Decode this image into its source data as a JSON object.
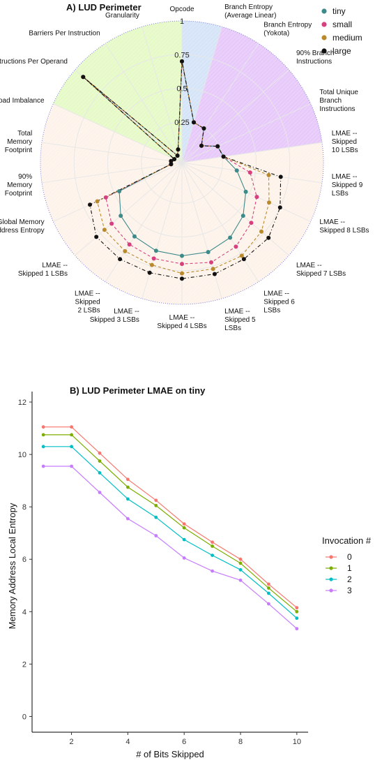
{
  "chart_data": [
    {
      "type": "radar",
      "title": "A) LUD Perimeter",
      "r_ticks": [
        "0.25",
        "0.5",
        "0.75",
        "1"
      ],
      "r_range": [
        0,
        1
      ],
      "axes": [
        "Opcode",
        "Branch Entropy\n(Average Linear)",
        "Branch Entropy\n(Yokota)",
        "90% Branch\nInstructions",
        "Total Unique\nBranch\nInstructions",
        "LMAE --\nSkipped\n10 LSBs",
        "LMAE --\nSkipped 9\nLSBs",
        "LMAE --\nSkipped 8 LSBs",
        "LMAE --\nSkipped 7 LSBs",
        "LMAE --\nSkipped 6\nLSBs",
        "LMAE --\nSkipped 5\nLSBs",
        "LMAE --\nSkipped 4 LSBs",
        "LMAE --\nSkipped 3 LSBs",
        "LMAE --\nSkipped\n2 LSBs",
        "LMAE --\nSkipped 1 LSBs",
        "Global Memory\nAddress Entropy",
        "90%\nMemory\nFootprint",
        "Total\nMemory\nFootprint",
        "Load Imbalance",
        "Instructions Per Operand",
        "Barriers Per Instruction",
        "Granularity"
      ],
      "sectors": [
        {
          "from_axis": 0,
          "to_axis": 1,
          "color": "#d6e4f8"
        },
        {
          "from_axis": 1,
          "to_axis": 5,
          "color": "#e7c9fa"
        },
        {
          "from_axis": 5,
          "to_axis": 18,
          "color": "#fdf3ea"
        },
        {
          "from_axis": 18,
          "to_axis": 22,
          "color": "#e6fac8"
        }
      ],
      "series": [
        {
          "name": "tiny",
          "color": "#3d8a8a",
          "dash": "solid",
          "values": [
            0.7,
            0.26,
            0.25,
            0.14,
            0.24,
            0.26,
            0.36,
            0.47,
            0.55,
            0.61,
            0.64,
            0.64,
            0.63,
            0.6,
            0.55,
            0.46,
            0.03,
            0.03,
            0.01,
            0.92,
            0.01,
            0.05
          ]
        },
        {
          "name": "small",
          "color": "#d6407f",
          "dash": "dashed",
          "values": [
            0.7,
            0.26,
            0.25,
            0.14,
            0.24,
            0.26,
            0.46,
            0.56,
            0.63,
            0.69,
            0.72,
            0.7,
            0.69,
            0.67,
            0.64,
            0.57,
            0.03,
            0.03,
            0.01,
            0.92,
            0.01,
            0.05
          ]
        },
        {
          "name": "medium",
          "color": "#b88a2c",
          "dash": "dashed",
          "values": [
            0.7,
            0.26,
            0.25,
            0.14,
            0.24,
            0.26,
            0.6,
            0.66,
            0.73,
            0.77,
            0.77,
            0.77,
            0.74,
            0.73,
            0.71,
            0.64,
            0.03,
            0.03,
            0.01,
            0.92,
            0.01,
            0.05
          ]
        },
        {
          "name": "large",
          "color": "#111111",
          "dash": "dotdash",
          "values": [
            0.7,
            0.26,
            0.25,
            0.14,
            0.24,
            0.26,
            0.69,
            0.75,
            0.8,
            0.8,
            0.81,
            0.81,
            0.8,
            0.8,
            0.79,
            0.7,
            0.03,
            0.03,
            0.01,
            0.92,
            0.01,
            0.05
          ]
        }
      ],
      "legend_position": "top-right",
      "grid": true
    },
    {
      "type": "line",
      "title": "B) LUD Perimeter LMAE on tiny",
      "xlabel": "# of Bits Skipped",
      "ylabel": "Memory Address Local Entropy",
      "x": [
        1,
        2,
        3,
        4,
        5,
        6,
        7,
        8,
        9,
        10
      ],
      "xticks": [
        2,
        4,
        6,
        8,
        10
      ],
      "yticks": [
        0,
        2,
        4,
        6,
        8,
        10,
        12
      ],
      "xlim": [
        0.6,
        10.4
      ],
      "ylim": [
        -0.6,
        12.4
      ],
      "grid": false,
      "legend_title": "Invocation #",
      "legend_position": "right",
      "series": [
        {
          "name": "0",
          "color": "#f8766d",
          "values": [
            11.05,
            11.05,
            10.05,
            9.05,
            8.25,
            7.35,
            6.65,
            6.0,
            5.05,
            4.15
          ]
        },
        {
          "name": "1",
          "color": "#7cae00",
          "values": [
            10.75,
            10.75,
            9.75,
            8.75,
            8.05,
            7.2,
            6.5,
            5.85,
            4.9,
            4.0
          ]
        },
        {
          "name": "2",
          "color": "#00bfc4",
          "values": [
            10.3,
            10.3,
            9.3,
            8.3,
            7.6,
            6.75,
            6.15,
            5.6,
            4.7,
            3.75
          ]
        },
        {
          "name": "3",
          "color": "#c77cff",
          "values": [
            9.55,
            9.55,
            8.55,
            7.55,
            6.9,
            6.05,
            5.55,
            5.2,
            4.3,
            3.35
          ]
        }
      ]
    }
  ]
}
